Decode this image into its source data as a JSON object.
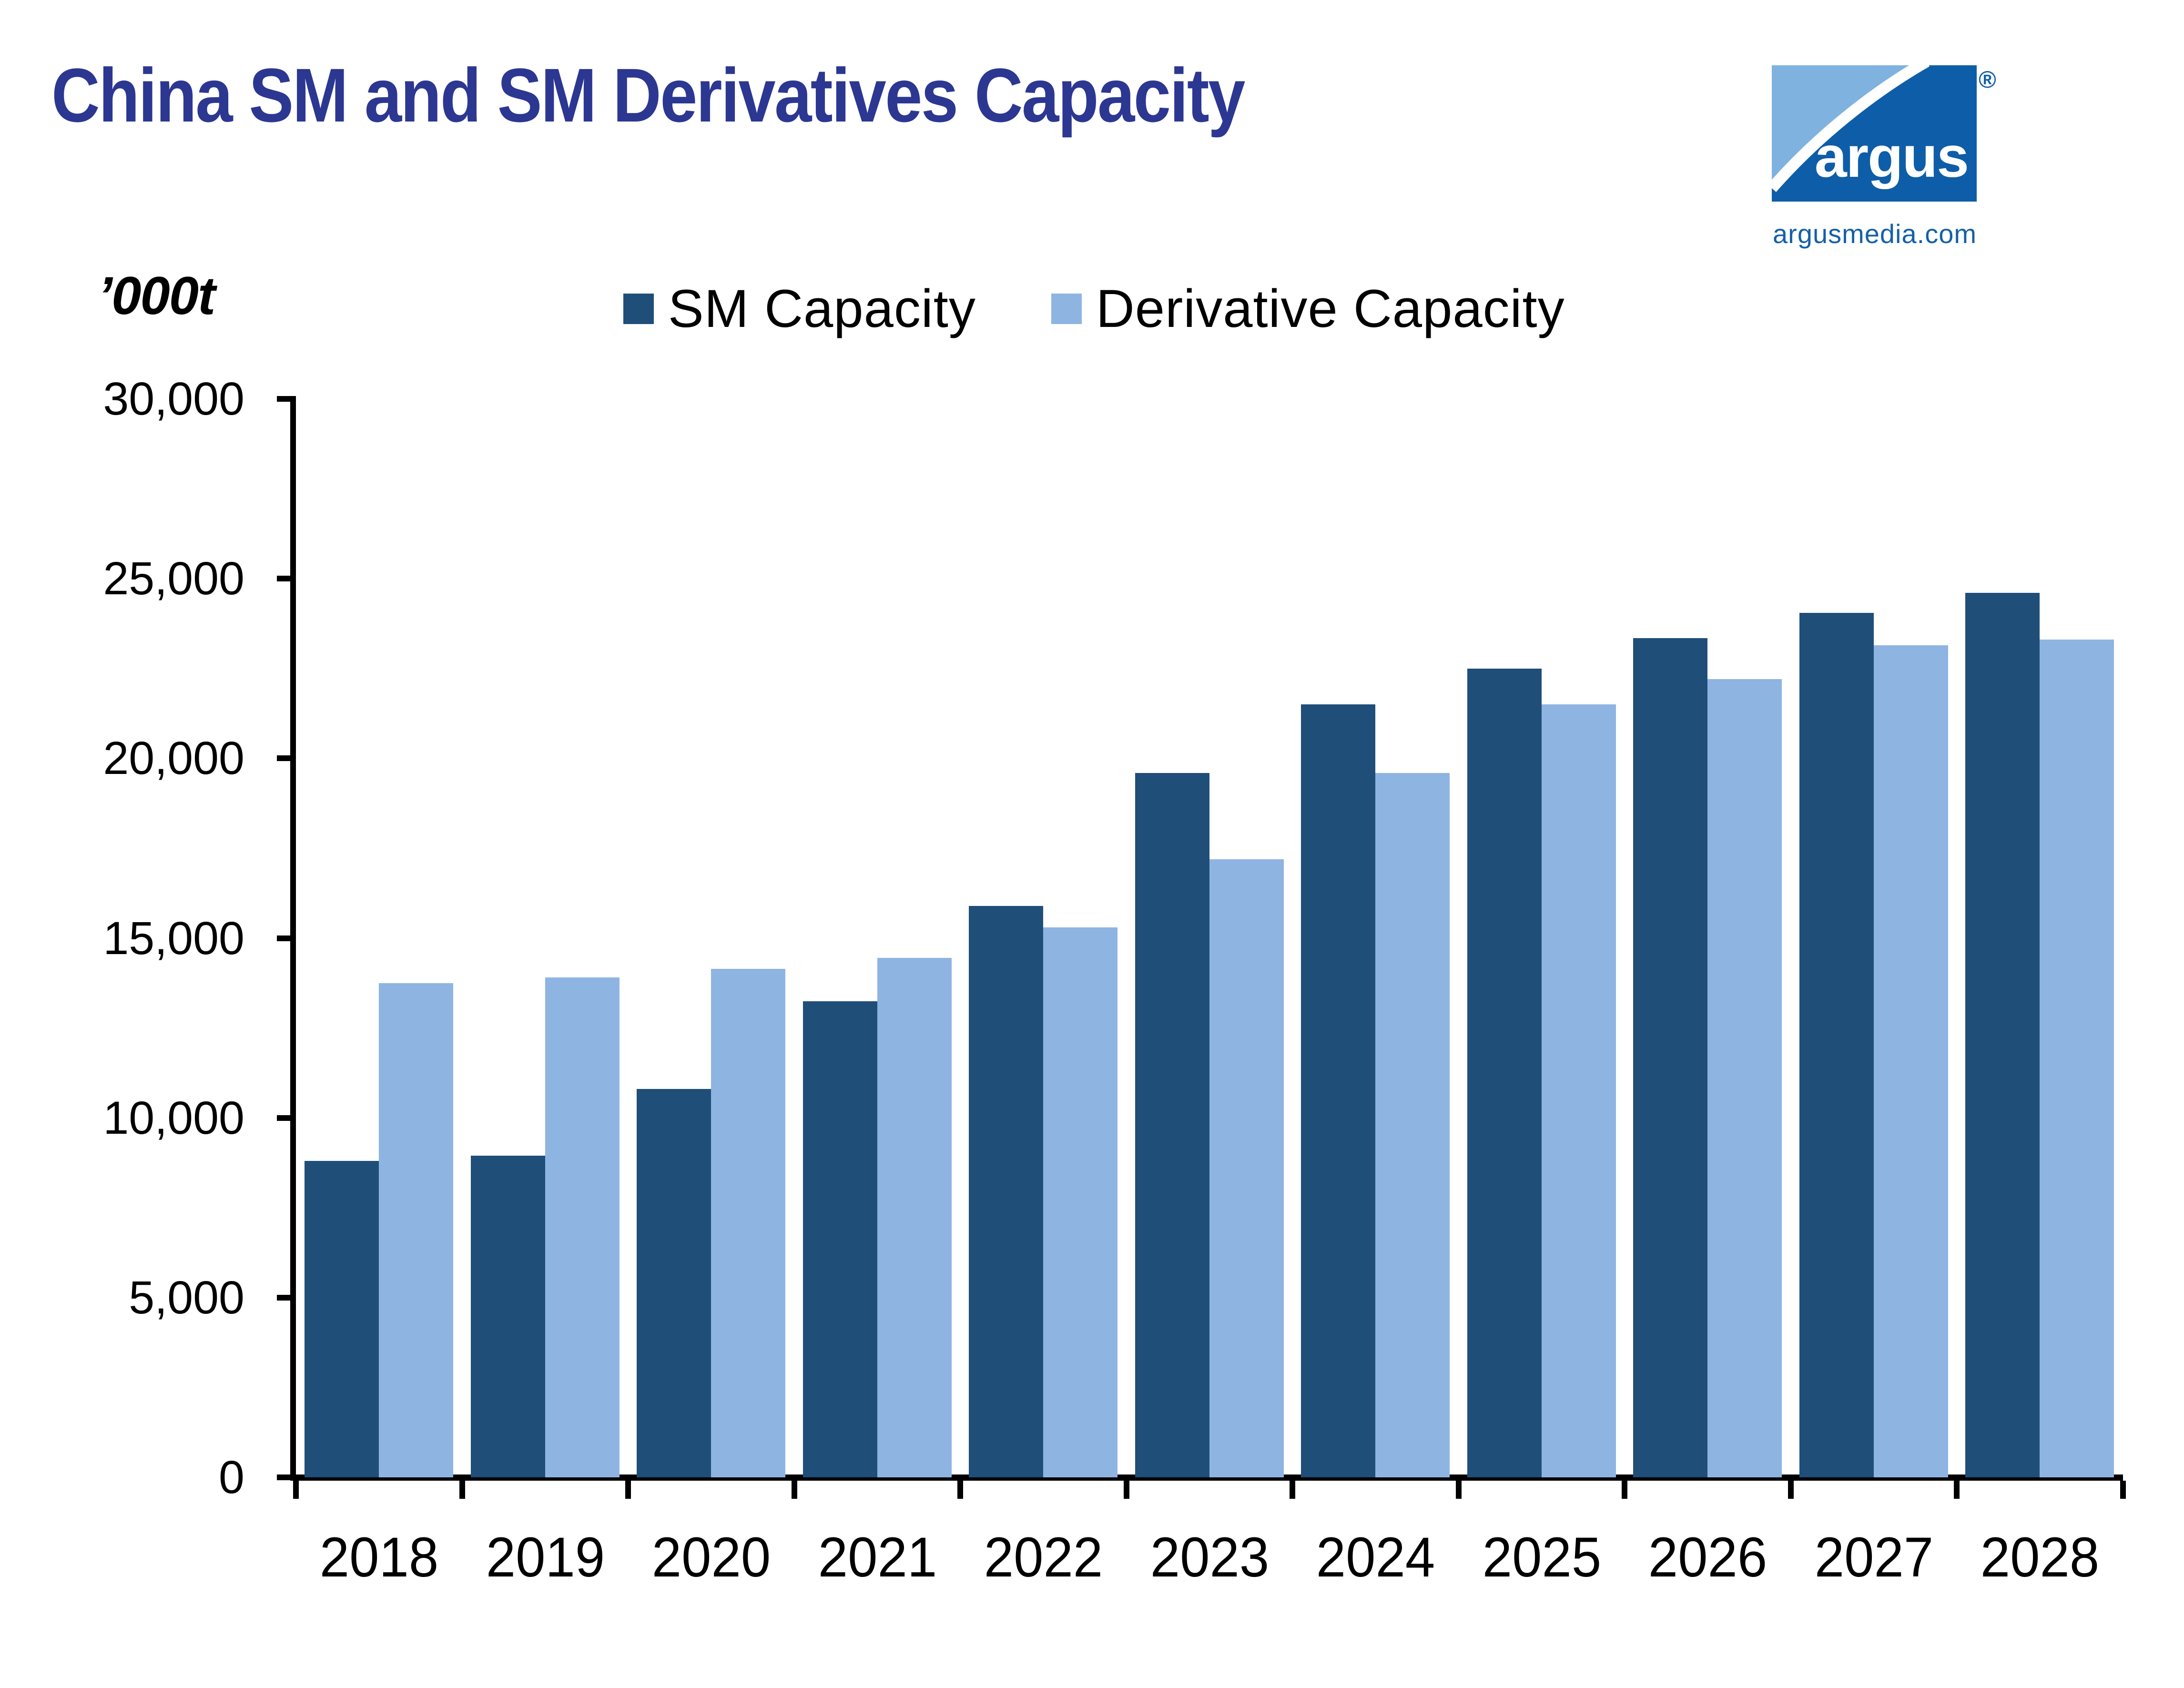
{
  "header": {
    "title": "China SM and SM Derivatives Capacity"
  },
  "logo": {
    "brand": "argus",
    "registered": "®",
    "domain": "argusmedia.com",
    "dark_blue": "#0E5DA8",
    "light_blue": "#7FB2DF"
  },
  "chart_data": {
    "type": "bar",
    "title": "China SM and SM Derivatives Capacity",
    "unit_label": "’000t",
    "categories": [
      "2018",
      "2019",
      "2020",
      "2021",
      "2022",
      "2023",
      "2024",
      "2025",
      "2026",
      "2027",
      "2028"
    ],
    "series": [
      {
        "name": "SM Capacity",
        "color": "#1F4E79",
        "values": [
          8800,
          8950,
          10800,
          13250,
          15900,
          19600,
          21500,
          22500,
          23350,
          24050,
          24600
        ]
      },
      {
        "name": "Derivative Capacity",
        "color": "#8EB4E2",
        "values": [
          13750,
          13900,
          14150,
          14450,
          15300,
          17200,
          19600,
          21500,
          22200,
          23150,
          23300
        ]
      }
    ],
    "xlabel": "",
    "ylabel": "’000t",
    "ylim": [
      0,
      30000
    ],
    "ytick_step": 5000,
    "ytick_labels": [
      "0",
      "5,000",
      "10,000",
      "15,000",
      "20,000",
      "25,000",
      "30,000"
    ],
    "grid": false,
    "legend_position": "top"
  }
}
